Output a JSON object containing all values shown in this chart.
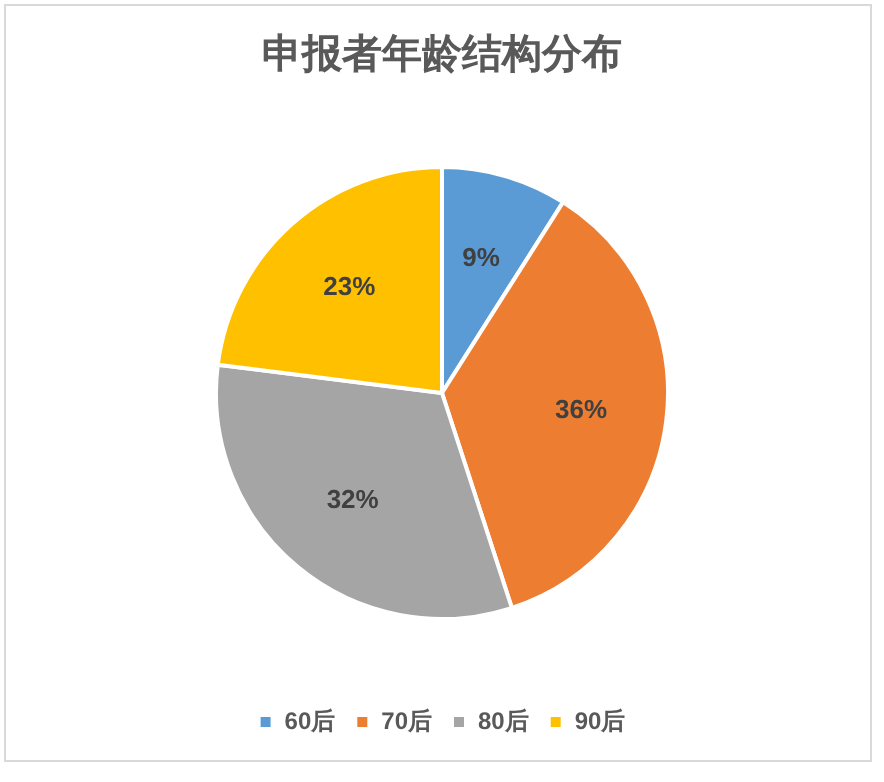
{
  "chart_data": {
    "type": "pie",
    "title": "申报者年龄结构分布",
    "categories": [
      "60后",
      "70后",
      "80后",
      "90后"
    ],
    "values": [
      9,
      36,
      32,
      23
    ],
    "value_labels": [
      "9%",
      "36%",
      "32%",
      "23%"
    ],
    "colors": [
      "#5b9bd5",
      "#ed7d31",
      "#a5a5a5",
      "#ffc000"
    ],
    "legend": "bottom"
  }
}
